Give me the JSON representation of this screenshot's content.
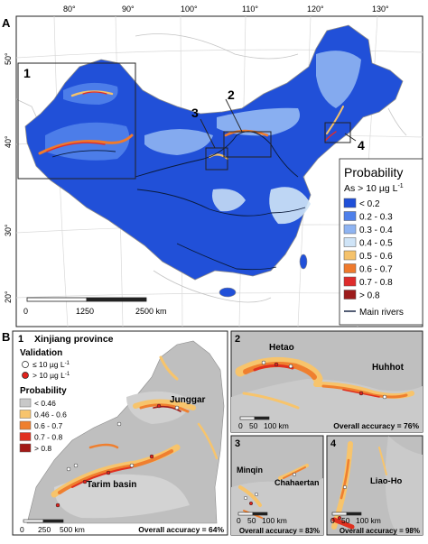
{
  "panel_a": {
    "letter": "A",
    "lon_ticks": [
      "80°",
      "90°",
      "100°",
      "110°",
      "120°",
      "130°"
    ],
    "lat_ticks": [
      "50°",
      "40°",
      "30°",
      "20°"
    ],
    "inset_numbers": [
      "1",
      "2",
      "3",
      "4"
    ],
    "scale_labels": [
      "0",
      "1250",
      "2500 km"
    ],
    "legend": {
      "title": "Probability",
      "subtitle": "As > 10 µg L",
      "subtitle_sup": "-1",
      "items": [
        {
          "label": "< 0.2",
          "color": "#1f4fd8"
        },
        {
          "label": "0.2 - 0.3",
          "color": "#4f80ea"
        },
        {
          "label": "0.3 - 0.4",
          "color": "#8fb4f2"
        },
        {
          "label": "0.4 - 0.5",
          "color": "#cfe4f7"
        },
        {
          "label": "0.5 - 0.6",
          "color": "#f5c26b"
        },
        {
          "label": "0.6 - 0.7",
          "color": "#ef7a2d"
        },
        {
          "label": "0.7 - 0.8",
          "color": "#de2c2c"
        },
        {
          "label": "> 0.8",
          "color": "#9c1b1b"
        }
      ],
      "river_label": "Main rivers"
    }
  },
  "panel_b": {
    "letter": "B",
    "inset1": {
      "number": "1",
      "title": "Xinjiang province",
      "validation_title": "Validation",
      "validation_items": [
        {
          "label": "≤ 10 µg L",
          "sup": "-1",
          "color": "#ffffff"
        },
        {
          "label": "> 10 µg L",
          "sup": "-1",
          "color": "#e0221c"
        }
      ],
      "probability_title": "Probability",
      "probability_items": [
        {
          "label": "< 0.46",
          "color": "#c8c8c8"
        },
        {
          "label": "0.46 - 0.6",
          "color": "#f7c46c"
        },
        {
          "label": "0.6 - 0.7",
          "color": "#ef7f2f"
        },
        {
          "label": "0.7 - 0.8",
          "color": "#e0301f"
        },
        {
          "label": "> 0.8",
          "color": "#a31a17"
        }
      ],
      "place_labels": [
        "Junggar",
        "Tarim basin"
      ],
      "scale_labels": [
        "0",
        "250",
        "500 km"
      ],
      "accuracy": "Overall accuracy = 64%"
    },
    "inset2": {
      "number": "2",
      "place_labels": [
        "Hetao",
        "Huhhot"
      ],
      "scale_labels": [
        "0",
        "50",
        "100 km"
      ],
      "accuracy": "Overall accuracy = 76%"
    },
    "inset3": {
      "number": "3",
      "place_labels": [
        "Minqin",
        "Chahaertan"
      ],
      "scale_labels": [
        "0",
        "50",
        "100 km"
      ],
      "accuracy": "Overall accuracy = 83%"
    },
    "inset4": {
      "number": "4",
      "place_labels": [
        "Liao-Ho"
      ],
      "scale_labels": [
        "0",
        "50",
        "100 km"
      ],
      "accuracy": "Overall accuracy = 98%"
    }
  }
}
